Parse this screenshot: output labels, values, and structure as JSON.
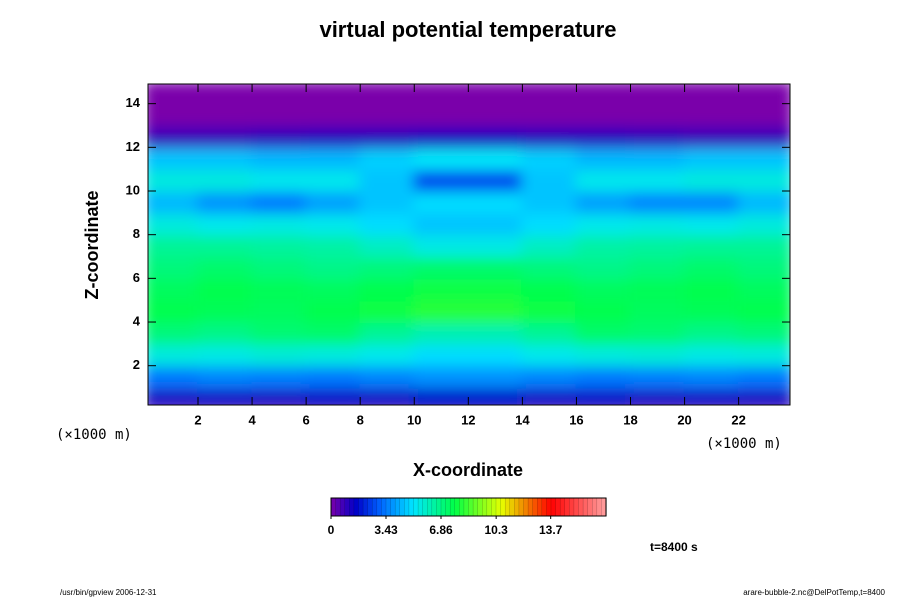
{
  "chart_data": {
    "type": "heatmap",
    "title": "virtual potential temperature",
    "x_label": "X-coordinate",
    "y_label": "Z-coordinate",
    "x_units_label": "(×1000 m)",
    "y_units_label": "(×1000 m)",
    "annotation": "t=8400 s",
    "footer_left": "/usr/bin/gpview 2006-12-31",
    "footer_right": "arare-bubble-2.nc@DelPotTemp,t=8400",
    "x": [
      1,
      3,
      5,
      7,
      9,
      11,
      13,
      15,
      17,
      19,
      21,
      23
    ],
    "y": [
      0.5,
      1.5,
      2.5,
      3.5,
      4.5,
      5.5,
      6.5,
      7.5,
      8.5,
      9.5,
      10.5,
      11.5,
      12.5,
      13.5,
      14.5
    ],
    "values": [
      [
        1.2,
        1.3,
        1.2,
        1.4,
        1.3,
        1.5,
        1.5,
        1.3,
        1.4,
        1.2,
        1.3,
        1.2
      ],
      [
        3.4,
        3.6,
        3.5,
        3.4,
        3.6,
        3.8,
        3.8,
        3.6,
        3.4,
        3.5,
        3.6,
        3.4
      ],
      [
        5.6,
        5.5,
        5.7,
        5.6,
        5.4,
        5.0,
        5.0,
        5.4,
        5.6,
        5.7,
        5.5,
        5.6
      ],
      [
        7.0,
        6.8,
        7.1,
        7.2,
        6.6,
        6.2,
        6.2,
        6.6,
        7.2,
        7.1,
        6.8,
        7.0
      ],
      [
        7.6,
        7.5,
        7.4,
        7.6,
        7.8,
        8.2,
        8.2,
        7.8,
        7.6,
        7.4,
        7.5,
        7.6
      ],
      [
        7.4,
        7.6,
        7.5,
        7.4,
        7.6,
        7.8,
        7.8,
        7.6,
        7.4,
        7.5,
        7.6,
        7.4
      ],
      [
        7.0,
        7.2,
        7.0,
        6.8,
        7.0,
        7.2,
        7.2,
        7.0,
        6.8,
        7.0,
        7.2,
        7.0
      ],
      [
        6.6,
        6.6,
        6.5,
        6.4,
        6.0,
        5.5,
        5.5,
        6.0,
        6.4,
        6.5,
        6.6,
        6.6
      ],
      [
        5.6,
        5.4,
        5.5,
        5.4,
        5.0,
        4.6,
        4.6,
        5.0,
        5.4,
        5.5,
        5.4,
        5.6
      ],
      [
        4.4,
        3.8,
        3.4,
        4.0,
        4.6,
        5.0,
        5.0,
        4.6,
        4.0,
        3.6,
        3.6,
        4.4
      ],
      [
        5.6,
        5.6,
        5.4,
        5.4,
        4.6,
        2.6,
        2.6,
        4.6,
        5.4,
        5.4,
        5.6,
        5.6
      ],
      [
        4.6,
        4.6,
        4.4,
        4.4,
        4.8,
        5.2,
        5.2,
        4.8,
        4.4,
        4.4,
        4.6,
        4.6
      ],
      [
        0.8,
        0.8,
        0.9,
        1.0,
        1.0,
        1.1,
        1.1,
        1.0,
        1.0,
        0.9,
        0.8,
        0.8
      ],
      [
        0,
        0,
        0,
        0,
        0,
        0,
        0,
        0,
        0,
        0,
        0,
        0
      ],
      [
        0,
        0,
        0,
        0,
        0,
        0,
        0,
        0,
        0,
        0,
        0,
        0
      ]
    ],
    "xlim": [
      0.15,
      23.9
    ],
    "ylim": [
      0.2,
      14.9
    ],
    "xticks": [
      2,
      4,
      6,
      8,
      10,
      12,
      14,
      16,
      18,
      20,
      22
    ],
    "yticks": [
      2,
      4,
      6,
      8,
      10,
      12,
      14
    ],
    "clim": [
      0,
      17.15
    ],
    "cticks": [
      0,
      3.43,
      6.86,
      10.3,
      13.7
    ]
  }
}
